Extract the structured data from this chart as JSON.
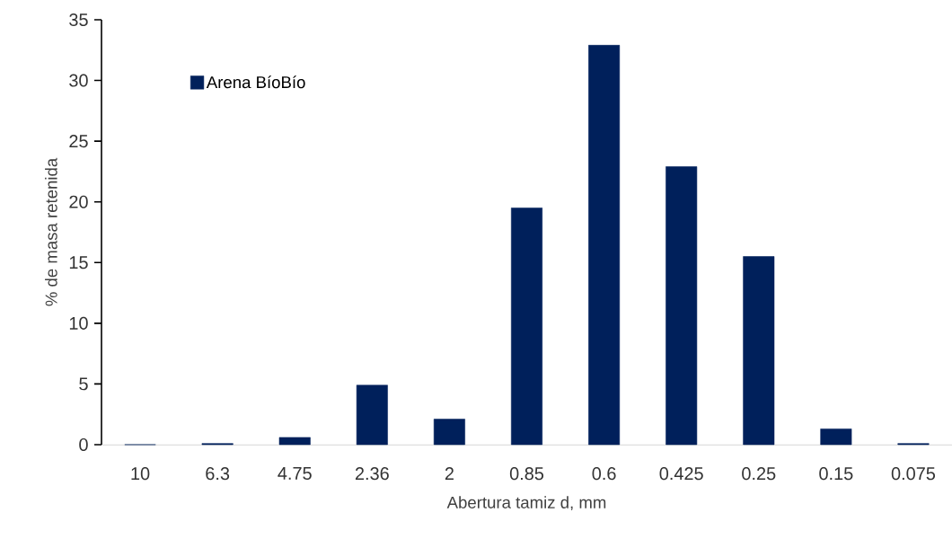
{
  "chart_data": {
    "type": "bar",
    "xlabel": "Abertura tamiz d, mm",
    "ylabel": "% de masa retenida",
    "categories": [
      "10",
      "6.3",
      "4.75",
      "2.36",
      "2",
      "0.85",
      "0.6",
      "0.425",
      "0.25",
      "0.15",
      "0.075"
    ],
    "series": [
      {
        "name": "Arena BíoBío",
        "color": "#00205b",
        "values": [
          0,
          0.1,
          0.6,
          4.9,
          2.1,
          19.5,
          32.9,
          22.9,
          15.5,
          1.3,
          0.1
        ]
      }
    ],
    "ylim": [
      0,
      35
    ],
    "yticks": [
      0,
      5,
      10,
      15,
      20,
      25,
      30,
      35
    ],
    "legend": "top left",
    "grid": false
  }
}
